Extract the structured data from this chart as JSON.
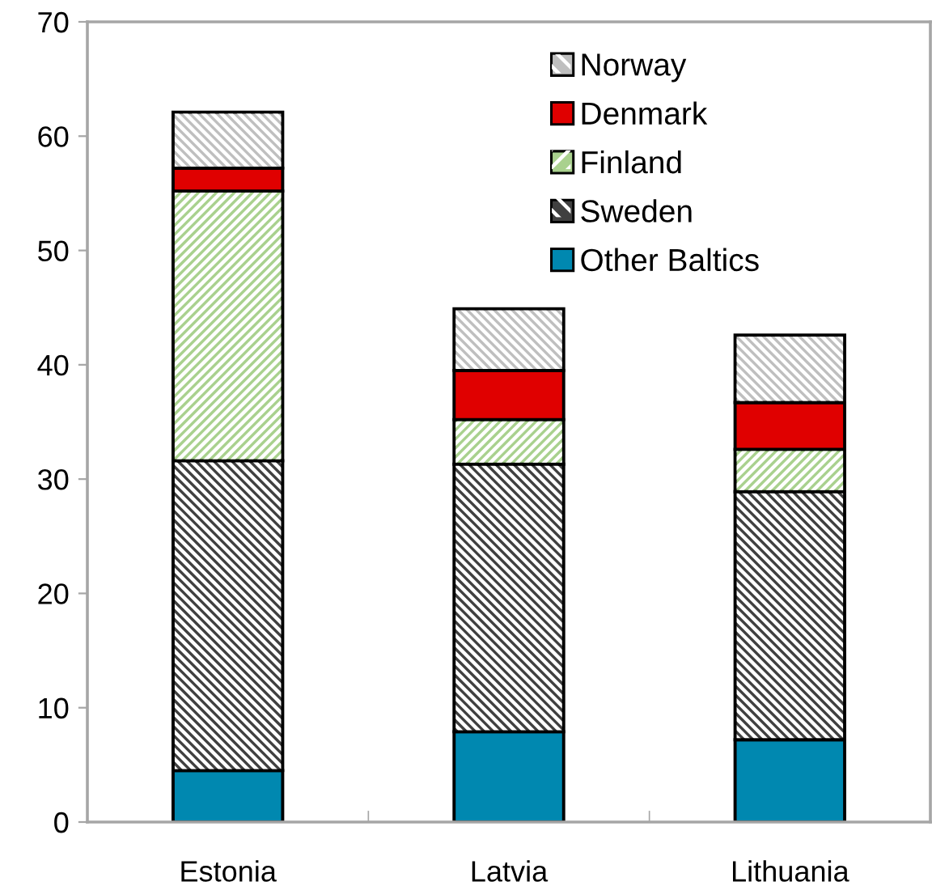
{
  "chart_data": {
    "type": "bar",
    "stacked": true,
    "categories": [
      "Estonia",
      "Latvia",
      "Lithuania"
    ],
    "series": [
      {
        "name": "Other Baltics",
        "color": "#0088b0",
        "values": [
          4.5,
          7.9,
          7.2
        ]
      },
      {
        "name": "Sweden",
        "color": "#404040",
        "values": [
          27.1,
          23.4,
          21.7
        ]
      },
      {
        "name": "Finland",
        "color": "#a9d18e",
        "values": [
          23.6,
          3.9,
          3.7
        ]
      },
      {
        "name": "Denmark",
        "color": "#e00000",
        "values": [
          2.0,
          4.3,
          4.1
        ]
      },
      {
        "name": "Norway",
        "color": "#bfbfbf",
        "values": [
          4.9,
          5.4,
          5.9
        ]
      }
    ],
    "ylim": [
      0,
      70
    ],
    "yticks": [
      0,
      10,
      20,
      30,
      40,
      50,
      60,
      70
    ],
    "grid": false,
    "legend": "top right"
  }
}
